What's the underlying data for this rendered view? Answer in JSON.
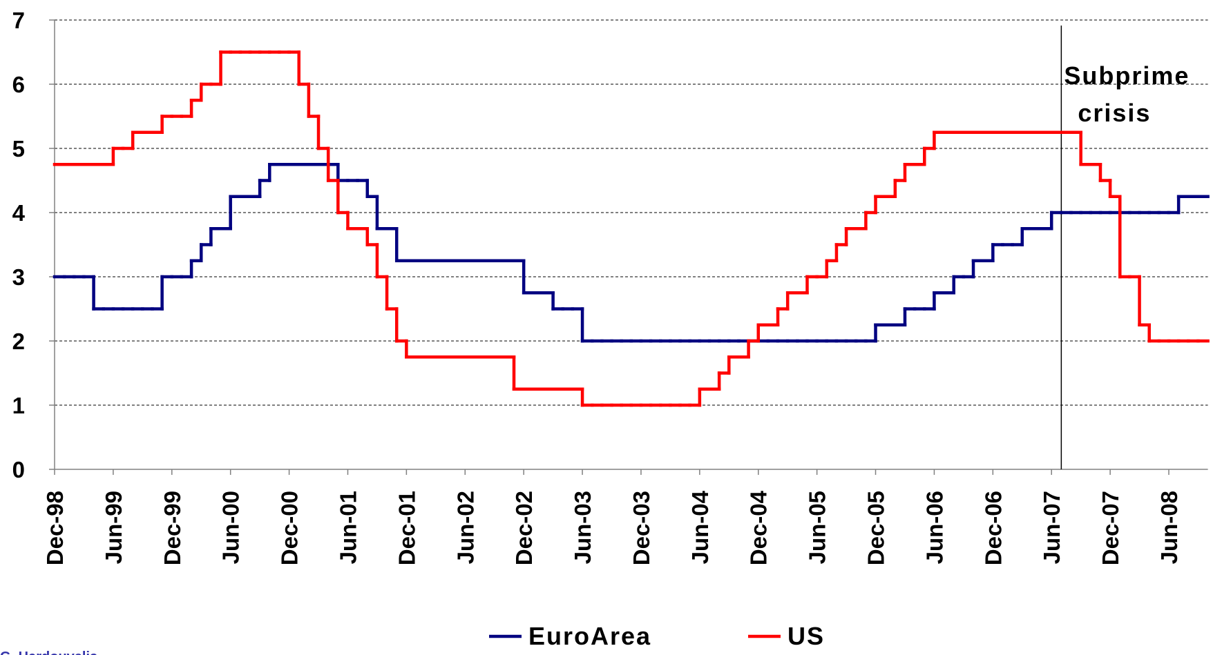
{
  "chart_data": {
    "type": "step",
    "categories": [
      "Dec-98",
      null,
      null,
      null,
      null,
      null,
      "Jun-99",
      null,
      null,
      null,
      null,
      null,
      "Dec-99",
      null,
      null,
      null,
      null,
      null,
      "Jun-00",
      null,
      null,
      null,
      null,
      null,
      "Dec-00",
      null,
      null,
      null,
      null,
      null,
      "Jun-01",
      null,
      null,
      null,
      null,
      null,
      "Dec-01",
      null,
      null,
      null,
      null,
      null,
      "Jun-02",
      null,
      null,
      null,
      null,
      null,
      "Dec-02",
      null,
      null,
      null,
      null,
      null,
      "Jun-03",
      null,
      null,
      null,
      null,
      null,
      "Dec-03",
      null,
      null,
      null,
      null,
      null,
      "Jun-04",
      null,
      null,
      null,
      null,
      null,
      "Dec-04",
      null,
      null,
      null,
      null,
      null,
      "Jun-05",
      null,
      null,
      null,
      null,
      null,
      "Dec-05",
      null,
      null,
      null,
      null,
      null,
      "Jun-06",
      null,
      null,
      null,
      null,
      null,
      "Dec-06",
      null,
      null,
      null,
      null,
      null,
      "Jun-07",
      null,
      null,
      null,
      null,
      null,
      "Dec-07",
      null,
      null,
      null,
      null,
      null,
      "Jun-08",
      null,
      null,
      null
    ],
    "series": [
      {
        "name": "EuroArea",
        "color": "#000080",
        "values": [
          3,
          3,
          3,
          3,
          2.5,
          2.5,
          2.5,
          2.5,
          2.5,
          2.5,
          2.5,
          3,
          3,
          3,
          3.25,
          3.5,
          3.75,
          3.75,
          4.25,
          4.25,
          4.25,
          4.5,
          4.75,
          4.75,
          4.75,
          4.75,
          4.75,
          4.75,
          4.75,
          4.5,
          4.5,
          4.5,
          4.25,
          3.75,
          3.75,
          3.25,
          3.25,
          3.25,
          3.25,
          3.25,
          3.25,
          3.25,
          3.25,
          3.25,
          3.25,
          3.25,
          3.25,
          3.25,
          2.75,
          2.75,
          2.75,
          2.5,
          2.5,
          2.5,
          2,
          2,
          2,
          2,
          2,
          2,
          2,
          2,
          2,
          2,
          2,
          2,
          2,
          2,
          2,
          2,
          2,
          2,
          2,
          2,
          2,
          2,
          2,
          2,
          2,
          2,
          2,
          2,
          2,
          2,
          2.25,
          2.25,
          2.25,
          2.5,
          2.5,
          2.5,
          2.75,
          2.75,
          3,
          3,
          3.25,
          3.25,
          3.5,
          3.5,
          3.5,
          3.75,
          3.75,
          3.75,
          4,
          4,
          4,
          4,
          4,
          4,
          4,
          4,
          4,
          4,
          4,
          4,
          4,
          4.25,
          4.25,
          4.25
        ]
      },
      {
        "name": "US",
        "color": "#ff0000",
        "values": [
          4.75,
          4.75,
          4.75,
          4.75,
          4.75,
          4.75,
          5,
          5,
          5.25,
          5.25,
          5.25,
          5.5,
          5.5,
          5.5,
          5.75,
          6,
          6,
          6.5,
          6.5,
          6.5,
          6.5,
          6.5,
          6.5,
          6.5,
          6.5,
          6,
          5.5,
          5,
          4.5,
          4,
          3.75,
          3.75,
          3.5,
          3,
          2.5,
          2,
          1.75,
          1.75,
          1.75,
          1.75,
          1.75,
          1.75,
          1.75,
          1.75,
          1.75,
          1.75,
          1.75,
          1.25,
          1.25,
          1.25,
          1.25,
          1.25,
          1.25,
          1.25,
          1,
          1,
          1,
          1,
          1,
          1,
          1,
          1,
          1,
          1,
          1,
          1,
          1.25,
          1.25,
          1.5,
          1.75,
          1.75,
          2,
          2.25,
          2.25,
          2.5,
          2.75,
          2.75,
          3,
          3,
          3.25,
          3.5,
          3.75,
          3.75,
          4,
          4.25,
          4.25,
          4.5,
          4.75,
          4.75,
          5,
          5.25,
          5.25,
          5.25,
          5.25,
          5.25,
          5.25,
          5.25,
          5.25,
          5.25,
          5.25,
          5.25,
          5.25,
          5.25,
          5.25,
          5.25,
          4.75,
          4.75,
          4.5,
          4.25,
          3,
          3,
          2.25,
          2,
          2,
          2,
          2,
          2,
          2
        ]
      }
    ],
    "ylim": [
      0,
      7
    ],
    "yticks": [
      0,
      1,
      2,
      3,
      4,
      5,
      6,
      7
    ],
    "grid": true,
    "legend": "bottom",
    "annotations": [
      {
        "lines": [
          "Subprime",
          "crisis"
        ],
        "x": 103
      }
    ],
    "source": "G. Hardouvelis"
  }
}
